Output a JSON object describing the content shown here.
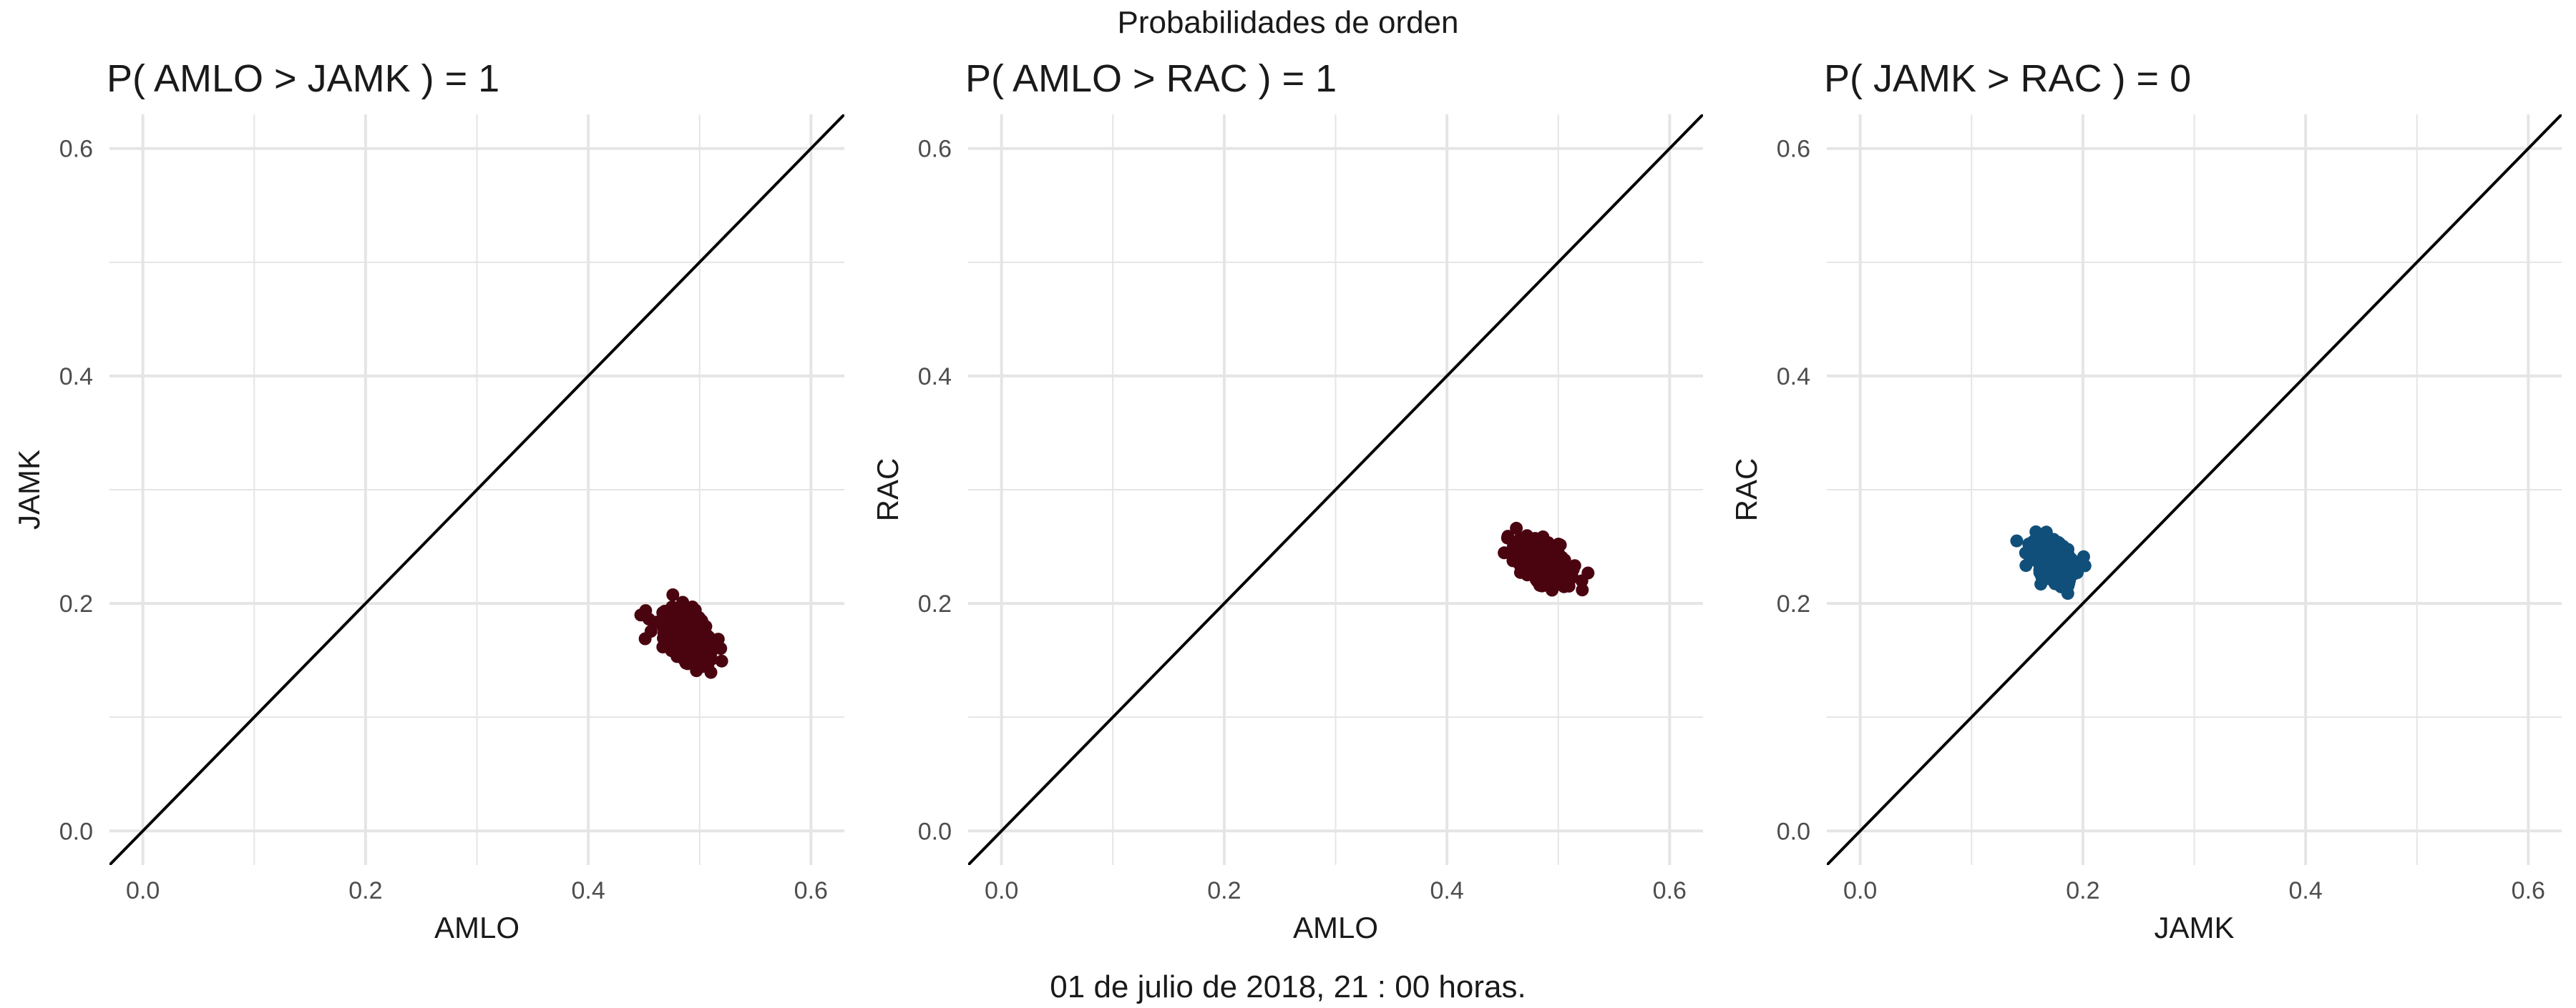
{
  "figure": {
    "title": "Probabilidades de orden",
    "caption": "01 de julio de 2018, 21 : 00 horas."
  },
  "colors": {
    "background": "#ffffff",
    "grid": "#e5e5e5",
    "diagonal": "#000000",
    "text": "#1a1a1a",
    "tick_text": "#4d4d4d",
    "maroon_points": "#4a0410",
    "blue_points": "#114f7b"
  },
  "chart_data": [
    {
      "type": "scatter",
      "title": "P( AMLO > JAMK ) = 1",
      "xlabel": "AMLO",
      "ylabel": "JAMK",
      "xlim": [
        -0.03,
        0.63
      ],
      "ylim": [
        -0.03,
        0.63
      ],
      "x_ticks": [
        0.0,
        0.2,
        0.4,
        0.6
      ],
      "x_tick_labels": [
        "0.0",
        "0.2",
        "0.4",
        "0.6"
      ],
      "y_ticks": [
        0.0,
        0.2,
        0.4,
        0.6
      ],
      "y_tick_labels": [
        "0.0",
        "0.2",
        "0.4",
        "0.6"
      ],
      "reference_line": "y = x",
      "point_color": "#4a0410",
      "cluster": {
        "center": [
          0.488,
          0.173
        ],
        "sd": [
          0.011,
          0.011
        ],
        "correlation": -0.4,
        "n": 420
      }
    },
    {
      "type": "scatter",
      "title": "P( AMLO > RAC ) = 1",
      "xlabel": "AMLO",
      "ylabel": "RAC",
      "xlim": [
        -0.03,
        0.63
      ],
      "ylim": [
        -0.03,
        0.63
      ],
      "x_ticks": [
        0.0,
        0.2,
        0.4,
        0.6
      ],
      "x_tick_labels": [
        "0.0",
        "0.2",
        "0.4",
        "0.6"
      ],
      "y_ticks": [
        0.0,
        0.2,
        0.4,
        0.6
      ],
      "y_tick_labels": [
        "0.0",
        "0.2",
        "0.4",
        "0.6"
      ],
      "reference_line": "y = x",
      "point_color": "#4a0410",
      "cluster": {
        "center": [
          0.486,
          0.236
        ],
        "sd": [
          0.011,
          0.01
        ],
        "correlation": -0.45,
        "n": 420
      }
    },
    {
      "type": "scatter",
      "title": "P( JAMK > RAC ) = 0",
      "xlabel": "JAMK",
      "ylabel": "RAC",
      "xlim": [
        -0.03,
        0.63
      ],
      "ylim": [
        -0.03,
        0.63
      ],
      "x_ticks": [
        0.0,
        0.2,
        0.4,
        0.6
      ],
      "x_tick_labels": [
        "0.0",
        "0.2",
        "0.4",
        "0.6"
      ],
      "y_ticks": [
        0.0,
        0.2,
        0.4,
        0.6
      ],
      "y_tick_labels": [
        "0.0",
        "0.2",
        "0.4",
        "0.6"
      ],
      "reference_line": "y = x",
      "point_color": "#114f7b",
      "cluster": {
        "center": [
          0.174,
          0.236
        ],
        "sd": [
          0.009,
          0.01
        ],
        "correlation": -0.45,
        "n": 420
      }
    }
  ]
}
